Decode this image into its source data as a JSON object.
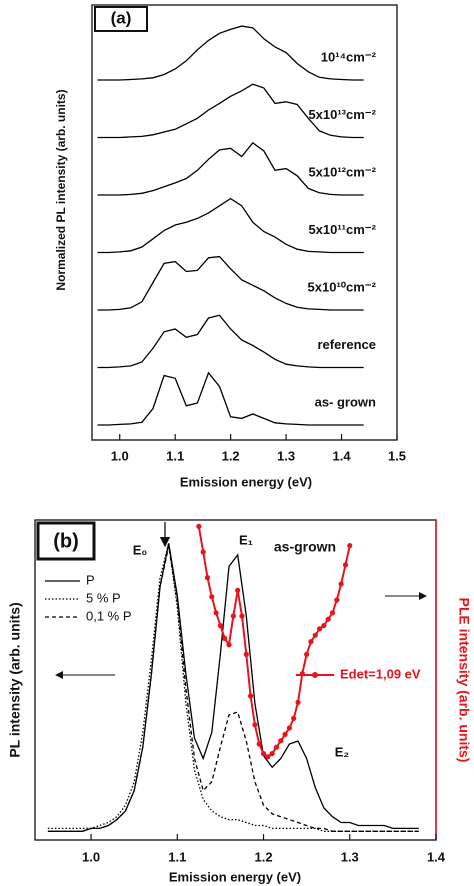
{
  "chart_data": [
    {
      "type": "line",
      "panel_label": "(a)",
      "xlabel": "Emission energy (eV)",
      "ylabel": "Normalized PL intensity (arb. units)",
      "xlim": [
        0.95,
        1.5
      ],
      "xticks": [
        1.0,
        1.1,
        1.2,
        1.3,
        1.4,
        1.5
      ],
      "x": [
        0.96,
        0.98,
        1.0,
        1.02,
        1.04,
        1.06,
        1.08,
        1.1,
        1.12,
        1.14,
        1.16,
        1.18,
        1.2,
        1.22,
        1.24,
        1.26,
        1.28,
        1.3,
        1.32,
        1.34,
        1.36,
        1.38,
        1.4,
        1.42,
        1.44
      ],
      "color": "#000000",
      "series": [
        {
          "name": "as- grown",
          "values": [
            0,
            0,
            0.01,
            0.02,
            0.05,
            0.3,
            0.9,
            0.85,
            0.35,
            0.4,
            0.95,
            0.7,
            0.15,
            0.12,
            0.2,
            0.12,
            0.04,
            0.02,
            0.01,
            0,
            0,
            0,
            0,
            0,
            0
          ]
        },
        {
          "name": "reference",
          "values": [
            0,
            0,
            0.01,
            0.03,
            0.1,
            0.35,
            0.65,
            0.7,
            0.55,
            0.6,
            0.9,
            0.95,
            0.7,
            0.5,
            0.4,
            0.28,
            0.15,
            0.06,
            0.03,
            0.01,
            0,
            0,
            0,
            0,
            0
          ]
        },
        {
          "name": "5x10¹⁰cm⁻²",
          "values": [
            0,
            0,
            0.01,
            0.04,
            0.15,
            0.5,
            0.85,
            0.88,
            0.7,
            0.72,
            0.95,
            0.97,
            0.75,
            0.55,
            0.45,
            0.35,
            0.22,
            0.12,
            0.05,
            0.02,
            0.01,
            0,
            0,
            0,
            0
          ]
        },
        {
          "name": "5x10¹¹cm⁻²",
          "values": [
            0,
            0,
            0.01,
            0.03,
            0.1,
            0.25,
            0.4,
            0.5,
            0.55,
            0.62,
            0.72,
            0.85,
            0.98,
            0.85,
            0.55,
            0.38,
            0.28,
            0.15,
            0.06,
            0.02,
            0.01,
            0,
            0,
            0,
            0
          ]
        },
        {
          "name": "5x10¹²cm⁻²",
          "values": [
            0,
            0,
            0,
            0.01,
            0.03,
            0.08,
            0.15,
            0.22,
            0.3,
            0.45,
            0.65,
            0.82,
            0.85,
            0.7,
            0.95,
            0.8,
            0.45,
            0.48,
            0.35,
            0.12,
            0.04,
            0.01,
            0,
            0,
            0
          ]
        },
        {
          "name": "5x10¹³cm⁻²",
          "values": [
            0,
            0,
            0,
            0.01,
            0.02,
            0.05,
            0.1,
            0.15,
            0.25,
            0.35,
            0.5,
            0.62,
            0.75,
            0.85,
            0.97,
            0.9,
            0.62,
            0.65,
            0.6,
            0.35,
            0.12,
            0.04,
            0.01,
            0,
            0
          ]
        },
        {
          "name": "10¹⁴cm⁻²",
          "values": [
            0,
            0,
            0,
            0.01,
            0.02,
            0.04,
            0.1,
            0.2,
            0.35,
            0.55,
            0.72,
            0.85,
            0.92,
            0.98,
            0.95,
            0.75,
            0.6,
            0.5,
            0.3,
            0.15,
            0.05,
            0.02,
            0.01,
            0,
            0
          ]
        }
      ]
    },
    {
      "type": "line",
      "panel_label": "(b)",
      "xlabel": "Emission energy (eV)",
      "ylabel": "PL intensity (arb. units)",
      "y2label": "PLE intensity (arb. units)",
      "annotations": [
        "E₀",
        "E₁",
        "E₂",
        "as-grown"
      ],
      "xlim": [
        0.935,
        1.4
      ],
      "xticks": [
        1.0,
        1.1,
        1.2,
        1.3,
        1.4
      ],
      "ylim": [
        -0.02,
        1.08
      ],
      "y2lim": [
        0,
        1
      ],
      "y2color": "#e8141b",
      "x": [
        0.95,
        0.96,
        0.97,
        0.98,
        0.99,
        1.0,
        1.01,
        1.02,
        1.03,
        1.04,
        1.05,
        1.06,
        1.07,
        1.08,
        1.09,
        1.1,
        1.11,
        1.12,
        1.13,
        1.14,
        1.15,
        1.16,
        1.17,
        1.18,
        1.19,
        1.2,
        1.21,
        1.22,
        1.23,
        1.24,
        1.25,
        1.26,
        1.27,
        1.28,
        1.29,
        1.3,
        1.31,
        1.32,
        1.33,
        1.34,
        1.35,
        1.36,
        1.37,
        1.38
      ],
      "series": [
        {
          "name": "P",
          "color": "#000000",
          "dash": "solid",
          "values": [
            0.01,
            0.01,
            0.01,
            0.01,
            0.01,
            0.02,
            0.02,
            0.03,
            0.05,
            0.08,
            0.15,
            0.3,
            0.55,
            0.85,
            1.0,
            0.82,
            0.55,
            0.33,
            0.26,
            0.35,
            0.62,
            0.92,
            0.96,
            0.75,
            0.45,
            0.27,
            0.23,
            0.26,
            0.31,
            0.32,
            0.26,
            0.16,
            0.09,
            0.06,
            0.04,
            0.04,
            0.03,
            0.03,
            0.03,
            0.03,
            0.02,
            0.02,
            0.02,
            0.02
          ]
        },
        {
          "name": "5 % P",
          "color": "#000000",
          "dash": "dotted",
          "values": [
            0.02,
            0.02,
            0.02,
            0.02,
            0.02,
            0.02,
            0.03,
            0.04,
            0.06,
            0.1,
            0.18,
            0.35,
            0.6,
            0.88,
            1.0,
            0.78,
            0.45,
            0.22,
            0.12,
            0.08,
            0.06,
            0.05,
            0.05,
            0.04,
            0.03,
            0.03,
            0.02,
            0.02,
            0.02,
            0.02,
            0.02,
            0.02,
            0.01,
            0.01,
            0.01,
            0.01,
            0.01,
            0.01,
            0.01,
            0.01,
            0.01,
            0.01,
            0.01,
            0.01
          ]
        },
        {
          "name": "0,1 % P",
          "color": "#000000",
          "dash": "dashed",
          "values": [
            0.01,
            0.01,
            0.01,
            0.01,
            0.01,
            0.02,
            0.02,
            0.03,
            0.05,
            0.08,
            0.15,
            0.3,
            0.55,
            0.85,
            0.99,
            0.8,
            0.5,
            0.26,
            0.15,
            0.18,
            0.3,
            0.41,
            0.42,
            0.32,
            0.18,
            0.1,
            0.07,
            0.06,
            0.05,
            0.04,
            0.03,
            0.02,
            0.02,
            0.01,
            0.01,
            0.01,
            0.01,
            0.01,
            0.01,
            0.01,
            0.01,
            0.01,
            0.01,
            0.01
          ]
        },
        {
          "name": "Edet=1,09 eV",
          "color": "#e8141b",
          "dash": "solid",
          "marker": "circle",
          "axis": "y2",
          "x": [
            1.125,
            1.13,
            1.135,
            1.14,
            1.145,
            1.15,
            1.155,
            1.16,
            1.165,
            1.17,
            1.175,
            1.18,
            1.185,
            1.19,
            1.195,
            1.2,
            1.205,
            1.21,
            1.215,
            1.22,
            1.225,
            1.23,
            1.235,
            1.24,
            1.245,
            1.25,
            1.255,
            1.26,
            1.265,
            1.27,
            1.275,
            1.28,
            1.285,
            1.29,
            1.295,
            1.3
          ],
          "values": [
            0.98,
            0.9,
            0.82,
            0.76,
            0.71,
            0.67,
            0.63,
            0.61,
            0.7,
            0.78,
            0.7,
            0.58,
            0.45,
            0.36,
            0.3,
            0.27,
            0.26,
            0.27,
            0.29,
            0.31,
            0.33,
            0.35,
            0.38,
            0.43,
            0.52,
            0.58,
            0.62,
            0.64,
            0.66,
            0.67,
            0.69,
            0.71,
            0.75,
            0.8,
            0.86,
            0.92
          ]
        }
      ]
    }
  ]
}
